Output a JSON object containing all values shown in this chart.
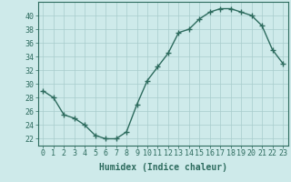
{
  "x": [
    0,
    1,
    2,
    3,
    4,
    5,
    6,
    7,
    8,
    9,
    10,
    11,
    12,
    13,
    14,
    15,
    16,
    17,
    18,
    19,
    20,
    21,
    22,
    23
  ],
  "y": [
    29,
    28,
    25.5,
    25,
    24,
    22.5,
    22,
    22,
    23,
    27,
    30.5,
    32.5,
    34.5,
    37.5,
    38,
    39.5,
    40.5,
    41,
    41,
    40.5,
    40,
    38.5,
    35,
    33
  ],
  "line_color": "#2d6b5e",
  "marker": "+",
  "marker_size": 4,
  "marker_lw": 1.0,
  "bg_color": "#ceeaea",
  "grid_color": "#a8cccc",
  "xlabel": "Humidex (Indice chaleur)",
  "xlim": [
    -0.5,
    23.5
  ],
  "ylim": [
    21,
    42
  ],
  "yticks": [
    22,
    24,
    26,
    28,
    30,
    32,
    34,
    36,
    38,
    40
  ],
  "xticks": [
    0,
    1,
    2,
    3,
    4,
    5,
    6,
    7,
    8,
    9,
    10,
    11,
    12,
    13,
    14,
    15,
    16,
    17,
    18,
    19,
    20,
    21,
    22,
    23
  ],
  "label_fontsize": 7,
  "tick_fontsize": 6,
  "line_width": 1.0
}
